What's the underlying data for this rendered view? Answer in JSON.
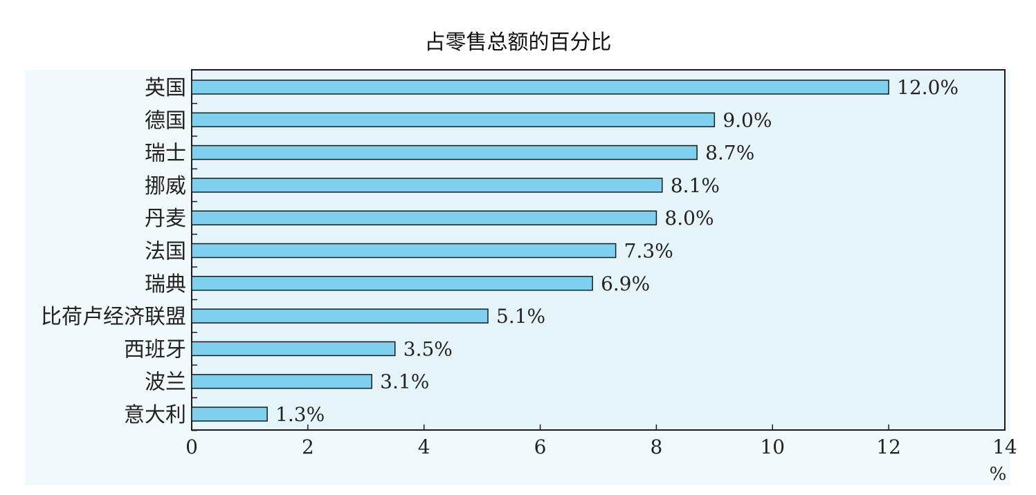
{
  "chart_data": {
    "type": "bar",
    "orientation": "horizontal",
    "title": "占零售总额的百分比",
    "xlabel": "%",
    "ylabel": "",
    "categories": [
      "英国",
      "德国",
      "瑞士",
      "挪威",
      "丹麦",
      "法国",
      "瑞典",
      "比荷卢经济联盟",
      "西班牙",
      "波兰",
      "意大利"
    ],
    "values": [
      12.0,
      9.0,
      8.7,
      8.1,
      8.0,
      7.3,
      6.9,
      5.1,
      3.5,
      3.1,
      1.3
    ],
    "data_labels": [
      "12.0%",
      "9.0%",
      "8.7%",
      "8.1%",
      "8.0%",
      "7.3%",
      "6.9%",
      "5.1%",
      "3.5%",
      "3.1%",
      "1.3%"
    ],
    "xlim": [
      0,
      14
    ],
    "xticks": [
      0,
      2,
      4,
      6,
      8,
      10,
      12,
      14
    ],
    "grid": false,
    "legend": "none",
    "colors": {
      "bar_fill": "#7fd0ee",
      "bar_stroke": "#1a1a1a",
      "plot_background": "#e4f4f9",
      "outer_background": "#f1f9fc",
      "axis": "#1a1a1a",
      "text": "#222222"
    }
  }
}
